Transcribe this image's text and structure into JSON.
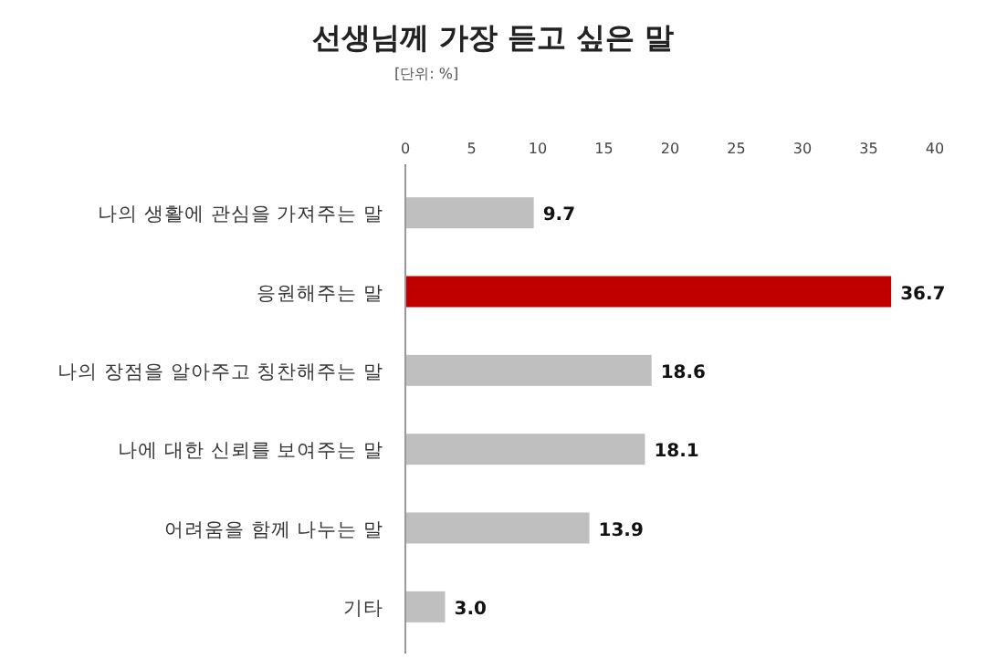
{
  "chart_data": {
    "type": "bar",
    "orientation": "horizontal",
    "title": "선생님께 가장 듣고 싶은 말",
    "annotations": [
      "[단위: %]"
    ],
    "categories": [
      "나의 생활에 관심을 가져주는 말",
      "응원해주는 말",
      "나의 장점을 알아주고 칭찬해주는 말",
      "나에 대한 신뢰를 보여주는 말",
      "어려움을 함께 나누는 말",
      "기타"
    ],
    "values": [
      9.7,
      36.7,
      18.6,
      18.1,
      13.9,
      3.0
    ],
    "value_labels": [
      "9.7",
      "36.7",
      "18.6",
      "18.1",
      "13.9",
      "3.0"
    ],
    "colors": [
      "#bfbfbf",
      "#c00000",
      "#bfbfbf",
      "#bfbfbf",
      "#bfbfbf",
      "#bfbfbf"
    ],
    "xlim": [
      0,
      40
    ],
    "xticks": [
      0,
      5,
      10,
      15,
      20,
      25,
      30,
      35,
      40
    ]
  }
}
